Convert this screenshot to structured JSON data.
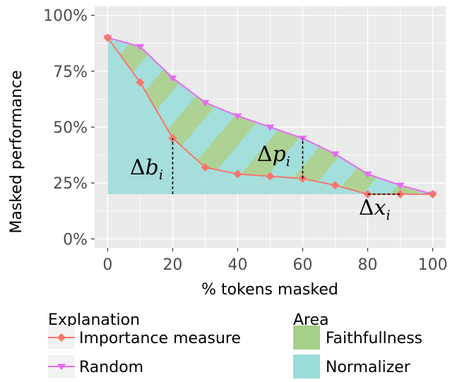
{
  "chart_data": {
    "type": "line",
    "xlabel": "% tokens masked",
    "ylabel": "Masked performance",
    "xlim": [
      -4,
      104
    ],
    "ylim": [
      -4,
      104
    ],
    "x_ticks": [
      0,
      20,
      40,
      60,
      80,
      100
    ],
    "x_tick_labels": [
      "0",
      "20",
      "40",
      "60",
      "80",
      "100"
    ],
    "y_ticks": [
      0,
      25,
      50,
      75,
      100
    ],
    "y_tick_labels": [
      "0%",
      "25%",
      "50%",
      "75%",
      "100%"
    ],
    "grid": true,
    "baseline": 20,
    "x": [
      0,
      10,
      20,
      30,
      40,
      50,
      60,
      70,
      80,
      90,
      100
    ],
    "series": [
      {
        "name": "Importance measure",
        "color": "#f8766d",
        "marker": "diamond",
        "values": [
          90,
          70,
          45,
          32,
          29,
          28,
          27,
          24,
          20,
          20,
          20
        ]
      },
      {
        "name": "Random",
        "color": "#e76bf3",
        "marker": "triangle-down",
        "values": [
          90,
          86,
          72,
          61,
          55,
          50,
          45,
          38,
          29,
          24,
          20
        ]
      }
    ],
    "areas": [
      {
        "name": "Faithfullness",
        "color": "#a6cf8a"
      },
      {
        "name": "Normalizer",
        "color": "#9adcd9"
      }
    ],
    "annotations": [
      {
        "id": "db",
        "delta": "Δ",
        "letter": "b",
        "sub": "i",
        "x": 20,
        "y_from": 20,
        "y_to": 45
      },
      {
        "id": "dp",
        "delta": "Δ",
        "letter": "p",
        "sub": "i",
        "x": 60,
        "y_from": 27,
        "y_to": 45
      },
      {
        "id": "dx",
        "delta": "Δ",
        "letter": "x",
        "sub": "i",
        "x_from": 80,
        "x_to": 90,
        "y": 20
      }
    ],
    "legend": {
      "position": "bottom",
      "explanation_title": "Explanation",
      "area_title": "Area"
    }
  }
}
